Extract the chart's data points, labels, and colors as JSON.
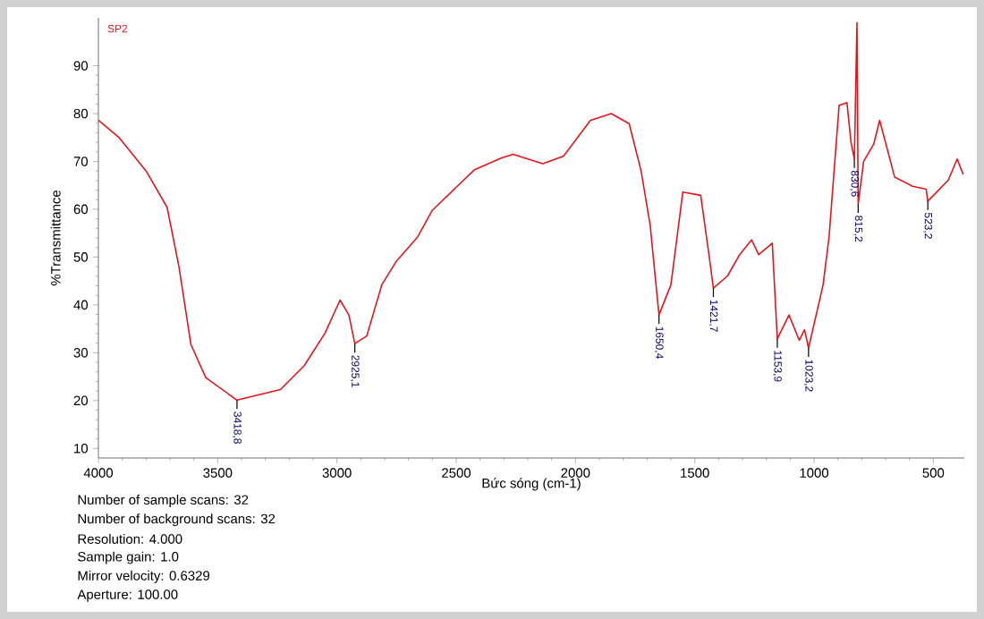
{
  "chart_data": {
    "type": "line",
    "xlabel": "Bức sóng (cm-1)",
    "ylabel": "%Transmittance",
    "xlim": [
      4000,
      370
    ],
    "ylim": [
      8,
      100
    ],
    "xticks": [
      4000,
      3500,
      3000,
      2500,
      2000,
      1500,
      1000,
      500
    ],
    "yticks": [
      10,
      20,
      30,
      40,
      50,
      60,
      70,
      80,
      90
    ],
    "grid": false,
    "marker": "none",
    "line_style": "solid",
    "series": [
      {
        "color": "#e8141b",
        "x": [
          4000,
          3912,
          3800,
          3712,
          3662,
          3612,
          3550,
          3419,
          3237,
          3137,
          3050,
          2987,
          2950,
          2925,
          2875,
          2812,
          2750,
          2662,
          2600,
          2425,
          2312,
          2262,
          2137,
          2050,
          1937,
          1850,
          1775,
          1725,
          1687,
          1650,
          1600,
          1550,
          1475,
          1437,
          1422,
          1362,
          1312,
          1262,
          1232,
          1175,
          1154,
          1105,
          1062,
          1040,
          1023,
          962,
          937,
          895,
          862,
          845,
          831,
          820,
          815,
          792,
          750,
          725,
          662,
          587,
          530,
          523,
          437,
          400,
          375
        ],
        "values": [
          78.6,
          74.9,
          68.0,
          60.4,
          47.9,
          31.7,
          24.8,
          20.1,
          22.3,
          27.3,
          34.1,
          41.0,
          37.9,
          31.9,
          33.5,
          44.2,
          49.2,
          54.2,
          59.8,
          68.2,
          70.7,
          71.5,
          69.5,
          71.1,
          78.6,
          80.0,
          77.9,
          68.0,
          56.7,
          37.9,
          44.2,
          63.6,
          62.9,
          49.2,
          43.5,
          46.1,
          50.5,
          53.6,
          50.5,
          52.9,
          32.9,
          37.9,
          32.6,
          34.8,
          31.0,
          44.2,
          54.2,
          81.7,
          82.3,
          74.0,
          70.5,
          99.0,
          61.1,
          70.0,
          73.6,
          78.6,
          66.7,
          64.8,
          64.2,
          61.7,
          66.1,
          70.5,
          67.3
        ]
      }
    ],
    "annotations": [
      "SP2",
      {
        "text": "3418,8",
        "x": 3419,
        "y": 20.1
      },
      {
        "text": "2925,1",
        "x": 2925,
        "y": 31.9
      },
      {
        "text": "1650,4",
        "x": 1650,
        "y": 37.9
      },
      {
        "text": "1421,7",
        "x": 1422,
        "y": 43.5
      },
      {
        "text": "1153,9",
        "x": 1154,
        "y": 32.9
      },
      {
        "text": "1023,2",
        "x": 1023,
        "y": 31.0
      },
      {
        "text": "830,6",
        "x": 831,
        "y": 70.5
      },
      {
        "text": "815,2",
        "x": 815,
        "y": 61.1
      },
      {
        "text": "523,2",
        "x": 523,
        "y": 61.7
      },
      "Number of sample scans:  32",
      "Number of background scans:  32",
      "Resolution:   4.000",
      "Sample gain:  1.0",
      "Mirror velocity:  0.6329",
      "Aperture:  100.00"
    ]
  }
}
